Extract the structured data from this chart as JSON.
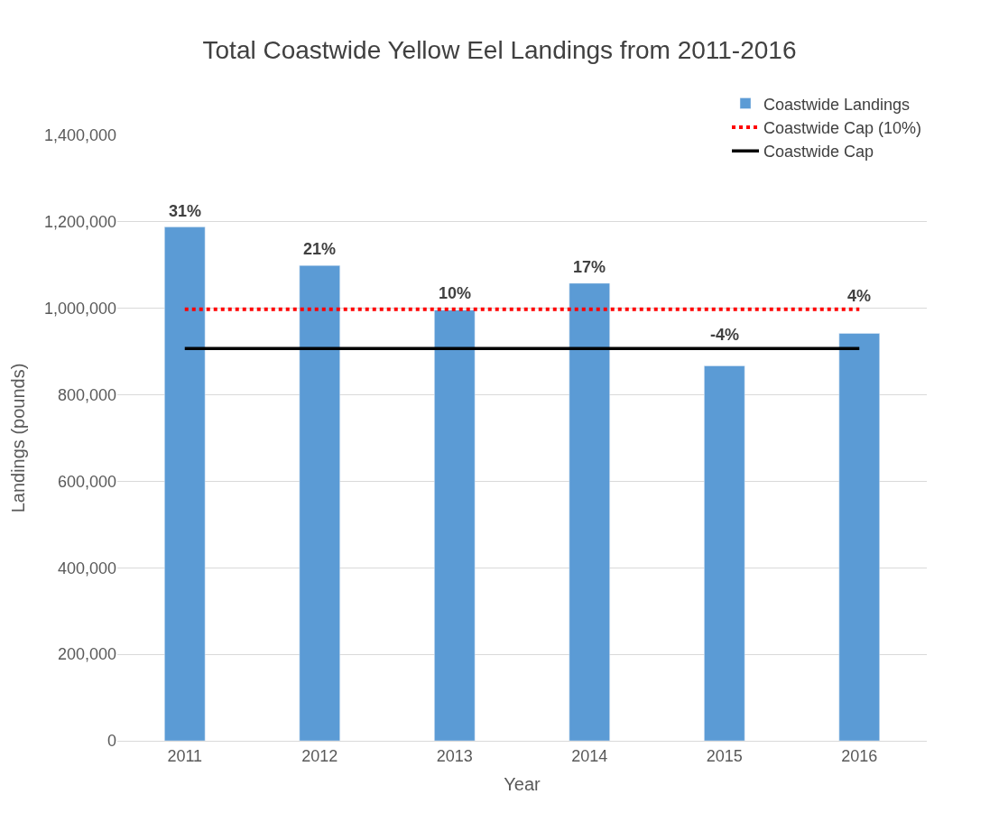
{
  "chart_data": {
    "type": "bar",
    "title": "Total Coastwide Yellow Eel Landings from 2011-2016",
    "xlabel": "Year",
    "ylabel": "Landings (pounds)",
    "categories": [
      "2011",
      "2012",
      "2013",
      "2014",
      "2015",
      "2016"
    ],
    "series": [
      {
        "type": "bar",
        "name": "Coastwide Landings",
        "color": "#5b9bd5",
        "values": [
          1188000,
          1099000,
          996000,
          1058000,
          867000,
          942000
        ]
      },
      {
        "type": "line",
        "name": "Coastwide Cap (10%)",
        "color": "#ff0000",
        "line_style": "dotted",
        "marker": "none",
        "values": [
          998000,
          998000,
          998000,
          998000,
          998000,
          998000
        ]
      },
      {
        "type": "line",
        "name": "Coastwide Cap",
        "color": "#000000",
        "line_style": "solid",
        "marker": "none",
        "values": [
          907000,
          907000,
          907000,
          907000,
          907000,
          907000
        ]
      }
    ],
    "ylim": [
      0,
      1400000
    ],
    "yticks": [
      {
        "value": 0,
        "label": "0"
      },
      {
        "value": 200000,
        "label": "200,000"
      },
      {
        "value": 400000,
        "label": "400,000"
      },
      {
        "value": 600000,
        "label": "600,000"
      },
      {
        "value": 800000,
        "label": "800,000"
      },
      {
        "value": 1000000,
        "label": "1,000,000"
      },
      {
        "value": 1200000,
        "label": "1,200,000"
      },
      {
        "value": 1400000,
        "label": "1,400,000"
      }
    ],
    "annotations": [
      {
        "text": "31%",
        "x": "2011",
        "y": 1188000
      },
      {
        "text": "21%",
        "x": "2012",
        "y": 1099000
      },
      {
        "text": "10%",
        "x": "2013",
        "y": 996000
      },
      {
        "text": "17%",
        "x": "2014",
        "y": 1058000
      },
      {
        "text": "-4%",
        "x": "2015",
        "y": 867000
      },
      {
        "text": "4%",
        "x": "2016",
        "y": 942000
      }
    ],
    "grid": "y",
    "legend": "top right"
  }
}
